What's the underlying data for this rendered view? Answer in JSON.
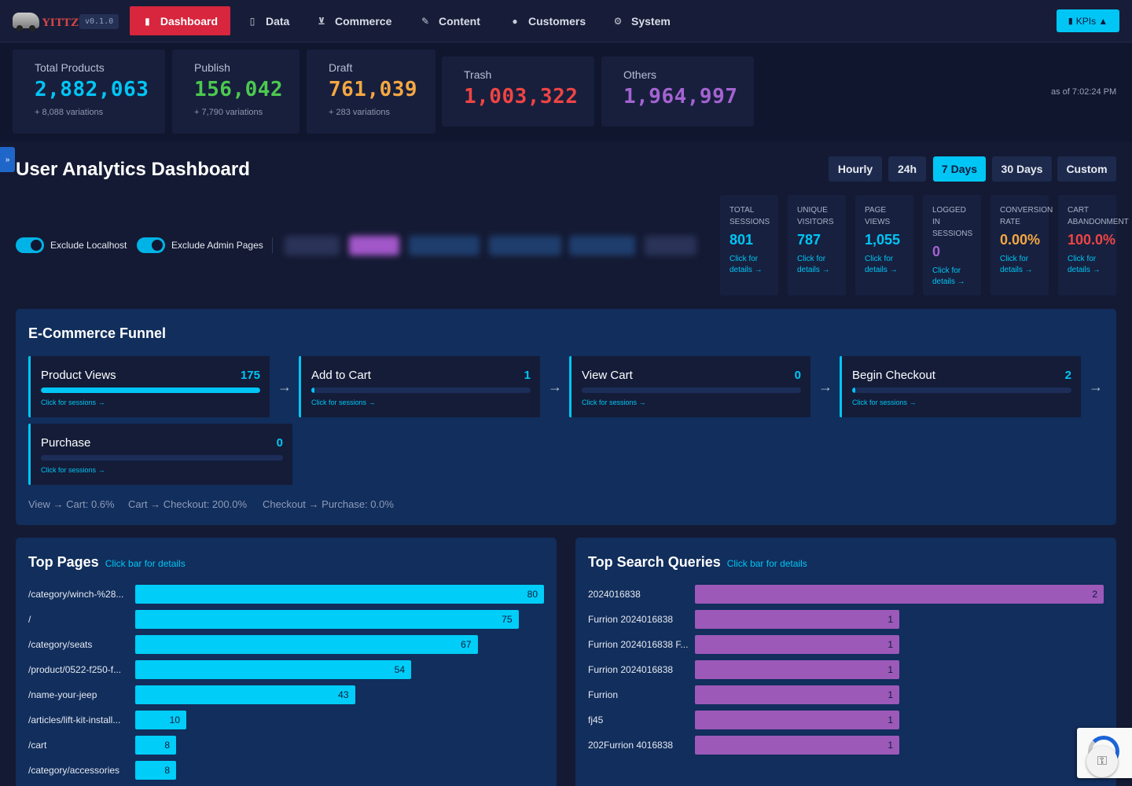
{
  "app": {
    "version": "v0.1.0",
    "logo_text": "YITTZY"
  },
  "nav": {
    "items": [
      {
        "label": "Dashboard",
        "icon": "bar-chart-icon",
        "active": true
      },
      {
        "label": "Data",
        "icon": "document-icon",
        "active": false
      },
      {
        "label": "Commerce",
        "icon": "cart-icon",
        "active": false
      },
      {
        "label": "Content",
        "icon": "edit-icon",
        "active": false
      },
      {
        "label": "Customers",
        "icon": "users-icon",
        "active": false
      },
      {
        "label": "System",
        "icon": "gear-icon",
        "active": false
      }
    ],
    "kpi_button": "KPIs ▲"
  },
  "stats": [
    {
      "label": "Total Products",
      "value": "2,882,063",
      "sub": "+ 8,088 variations",
      "color": "#00c6f5"
    },
    {
      "label": "Publish",
      "value": "156,042",
      "sub": "+ 7,790 variations",
      "color": "#4cc94f"
    },
    {
      "label": "Draft",
      "value": "761,039",
      "sub": "+ 283 variations",
      "color": "#f5a742"
    },
    {
      "label": "Trash",
      "value": "1,003,322",
      "sub": "",
      "color": "#ef4444"
    },
    {
      "label": "Others",
      "value": "1,964,997",
      "sub": "",
      "color": "#a463d1"
    }
  ],
  "as_of": "as of 7:02:24 PM",
  "side_tab": "»",
  "analytics": {
    "title": "User Analytics Dashboard",
    "ranges": [
      {
        "label": "Hourly",
        "active": false
      },
      {
        "label": "24h",
        "active": false
      },
      {
        "label": "7 Days",
        "active": true
      },
      {
        "label": "30 Days",
        "active": false
      },
      {
        "label": "Custom",
        "active": false
      }
    ],
    "toggles": [
      {
        "label": "Exclude Localhost",
        "on": true
      },
      {
        "label": "Exclude Admin Pages",
        "on": true
      }
    ],
    "metrics": [
      {
        "label": "TOTAL SESSIONS",
        "value": "801",
        "link": "Click for details →",
        "color": "#00c6f5"
      },
      {
        "label": "UNIQUE VISITORS",
        "value": "787",
        "link": "Click for details →",
        "color": "#00c6f5"
      },
      {
        "label": "PAGE VIEWS",
        "value": "1,055",
        "link": "Click for details →",
        "color": "#00c6f5"
      },
      {
        "label": "LOGGED IN SESSIONS",
        "value": "0",
        "link": "Click for details →",
        "color": "#a463d1"
      },
      {
        "label": "CONVERSION RATE",
        "value": "0.00%",
        "link": "Click for details →",
        "color": "#f5a742"
      },
      {
        "label": "CART ABANDONMENT",
        "value": "100.0%",
        "link": "Click for details →",
        "color": "#ef4444"
      }
    ]
  },
  "funnel": {
    "title": "E-Commerce Funnel",
    "steps": [
      {
        "name": "Product Views",
        "count": "175",
        "fill": 1.0,
        "link": "Click for sessions →"
      },
      {
        "name": "Add to Cart",
        "count": "1",
        "fill": 0.006,
        "link": "Click for sessions →"
      },
      {
        "name": "View Cart",
        "count": "0",
        "fill": 0,
        "link": "Click for sessions →"
      },
      {
        "name": "Begin Checkout",
        "count": "2",
        "fill": 0.011,
        "link": "Click for sessions →"
      },
      {
        "name": "Purchase",
        "count": "0",
        "fill": 0,
        "link": "Click for sessions →"
      }
    ],
    "arrow": "→",
    "conversions": [
      "View → Cart: 0.6%",
      "Cart → Checkout: 200.0%",
      "Checkout → Purchase: 0.0%"
    ]
  },
  "top_pages": {
    "title": "Top Pages",
    "link": "Click bar for details",
    "rows": [
      {
        "label": "/category/winch-%28...",
        "value": 80
      },
      {
        "label": "/",
        "value": 75
      },
      {
        "label": "/category/seats",
        "value": 67
      },
      {
        "label": "/product/0522-f250-f...",
        "value": 54
      },
      {
        "label": "/name-your-jeep",
        "value": 43
      },
      {
        "label": "/articles/lift-kit-install...",
        "value": 10
      },
      {
        "label": "/cart",
        "value": 8
      },
      {
        "label": "/category/accessories",
        "value": 8
      }
    ]
  },
  "top_search": {
    "title": "Top Search Queries",
    "link": "Click bar for details",
    "rows": [
      {
        "label": "2024016838",
        "value": 2
      },
      {
        "label": "Furrion 2024016838",
        "value": 1
      },
      {
        "label": "Furrion 2024016838 F...",
        "value": 1
      },
      {
        "label": "Furrion 2024016838",
        "value": 1
      },
      {
        "label": "Furrion",
        "value": 1
      },
      {
        "label": "fj45",
        "value": 1
      },
      {
        "label": "202Furrion 4016838",
        "value": 1
      }
    ]
  }
}
